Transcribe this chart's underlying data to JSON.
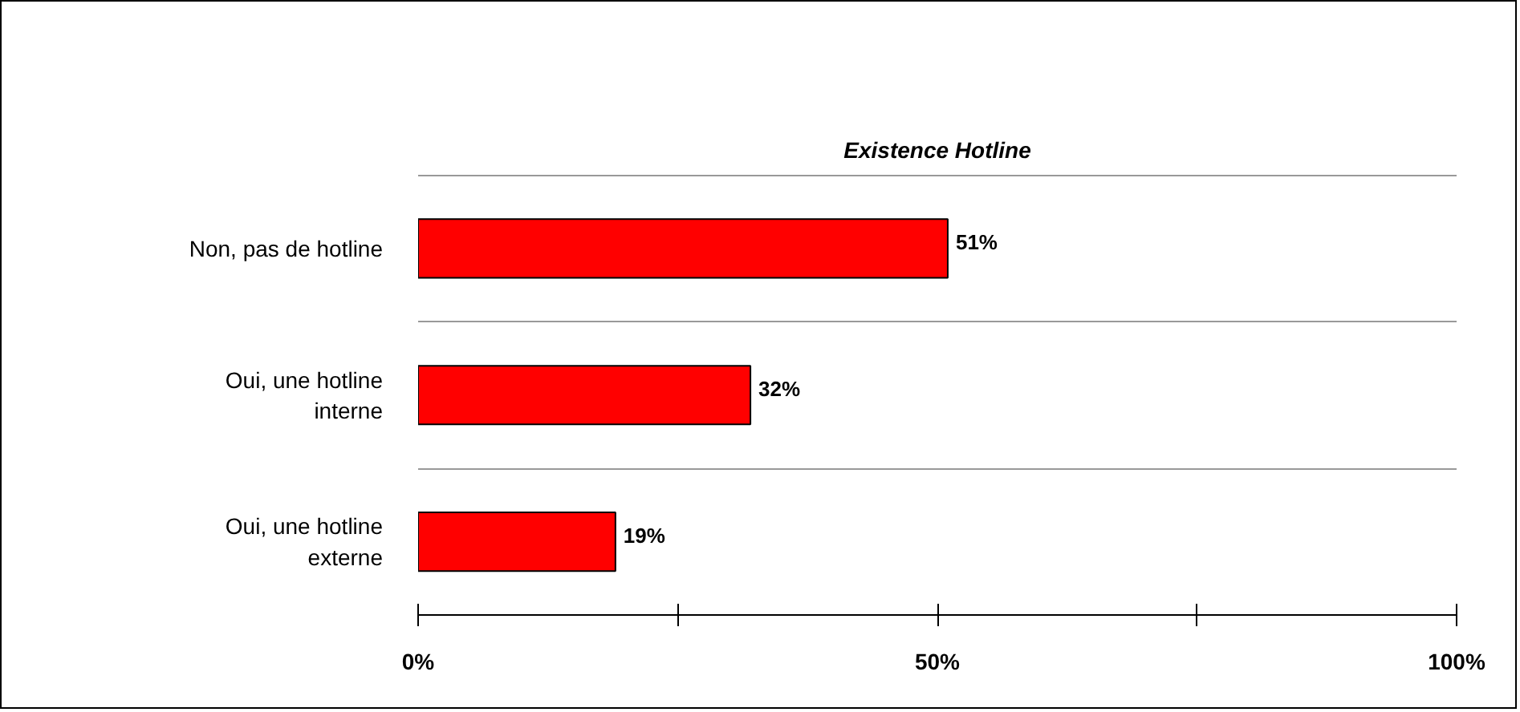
{
  "chart_data": {
    "type": "bar",
    "orientation": "horizontal",
    "title": "Existence Hotline",
    "categories": [
      "Non, pas de hotline",
      "Oui, une hotline interne",
      "Oui, une hotline externe"
    ],
    "values": [
      51,
      32,
      19
    ],
    "color": "#ff0000",
    "value_labels": [
      "51%",
      "32%",
      "19%"
    ],
    "xlim": [
      0,
      100
    ],
    "xticks": [
      {
        "value": 0,
        "label": "0%"
      },
      {
        "value": 25,
        "label": null
      },
      {
        "value": 50,
        "label": "50%"
      },
      {
        "value": 75,
        "label": null
      },
      {
        "value": 100,
        "label": "100%"
      }
    ],
    "grid": "y"
  }
}
